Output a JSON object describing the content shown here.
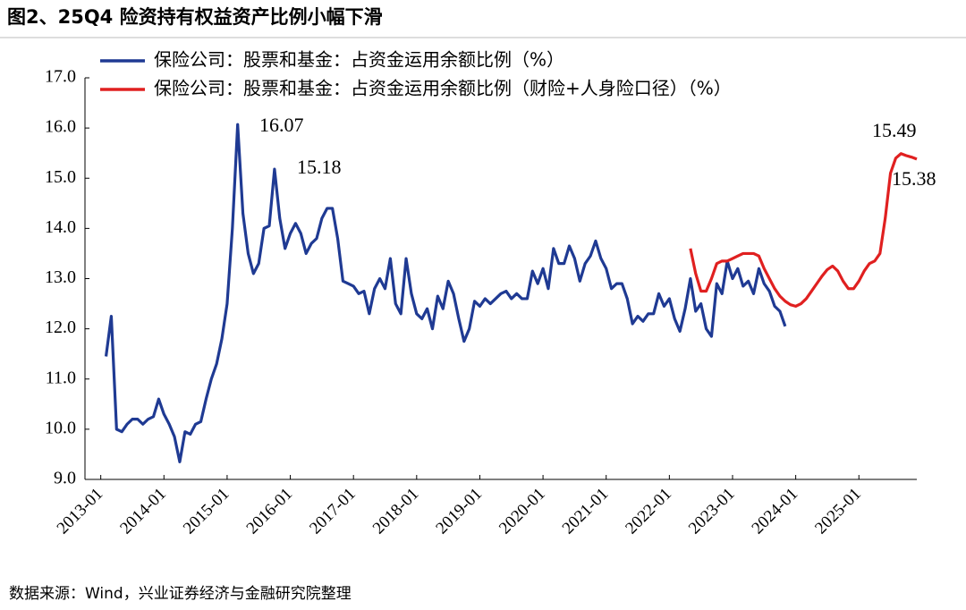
{
  "chart_data": {
    "type": "line",
    "title": "图2、25Q4 险资持有权益资产比例小幅下滑",
    "source": "数据来源：Wind，兴业证券经济与金融研究院整理",
    "x": [
      "2013-01",
      "2013-02",
      "2013-03",
      "2013-04",
      "2013-05",
      "2013-06",
      "2013-07",
      "2013-08",
      "2013-09",
      "2013-10",
      "2013-11",
      "2013-12",
      "2014-01",
      "2014-02",
      "2014-03",
      "2014-04",
      "2014-05",
      "2014-06",
      "2014-07",
      "2014-08",
      "2014-09",
      "2014-10",
      "2014-11",
      "2014-12",
      "2015-01",
      "2015-02",
      "2015-03",
      "2015-04",
      "2015-05",
      "2015-06",
      "2015-07",
      "2015-08",
      "2015-09",
      "2015-10",
      "2015-11",
      "2015-12",
      "2016-01",
      "2016-02",
      "2016-03",
      "2016-04",
      "2016-05",
      "2016-06",
      "2016-07",
      "2016-08",
      "2016-09",
      "2016-10",
      "2016-11",
      "2016-12",
      "2017-01",
      "2017-02",
      "2017-03",
      "2017-04",
      "2017-05",
      "2017-06",
      "2017-07",
      "2017-08",
      "2017-09",
      "2017-10",
      "2017-11",
      "2017-12",
      "2018-01",
      "2018-02",
      "2018-03",
      "2018-04",
      "2018-05",
      "2018-06",
      "2018-07",
      "2018-08",
      "2018-09",
      "2018-10",
      "2018-11",
      "2018-12",
      "2019-01",
      "2019-02",
      "2019-03",
      "2019-04",
      "2019-05",
      "2019-06",
      "2019-07",
      "2019-08",
      "2019-09",
      "2019-10",
      "2019-11",
      "2019-12",
      "2020-01",
      "2020-02",
      "2020-03",
      "2020-04",
      "2020-05",
      "2020-06",
      "2020-07",
      "2020-08",
      "2020-09",
      "2020-10",
      "2020-11",
      "2020-12",
      "2021-01",
      "2021-02",
      "2021-03",
      "2021-04",
      "2021-05",
      "2021-06",
      "2021-07",
      "2021-08",
      "2021-09",
      "2021-10",
      "2021-11",
      "2021-12",
      "2022-01",
      "2022-02",
      "2022-03",
      "2022-04",
      "2022-05",
      "2022-06",
      "2022-07",
      "2022-08",
      "2022-09",
      "2022-10",
      "2022-11",
      "2022-12",
      "2023-01",
      "2023-02",
      "2023-03",
      "2023-04",
      "2023-05",
      "2023-06",
      "2023-07",
      "2023-08",
      "2023-09",
      "2023-10",
      "2023-11",
      "2023-12",
      "2024-01",
      "2024-02",
      "2024-03",
      "2024-04",
      "2024-05",
      "2024-06",
      "2024-07",
      "2024-08",
      "2024-09",
      "2024-10",
      "2024-11",
      "2024-12",
      "2025-01",
      "2025-02",
      "2025-03",
      "2025-04",
      "2025-05",
      "2025-06",
      "2025-07",
      "2025-08",
      "2025-09",
      "2025-10",
      "2025-11",
      "2025-12"
    ],
    "series": [
      {
        "name": "保险公司：股票和基金：占资金运用余额比例（%）",
        "color": "#1f3a93",
        "values": [
          null,
          11.45,
          12.25,
          10.0,
          9.95,
          10.1,
          10.2,
          10.2,
          10.1,
          10.2,
          10.25,
          10.6,
          10.3,
          10.1,
          9.85,
          9.35,
          9.95,
          9.9,
          10.1,
          10.15,
          10.6,
          11.0,
          11.3,
          11.8,
          12.5,
          14.0,
          16.07,
          14.3,
          13.5,
          13.1,
          13.3,
          14.0,
          14.05,
          15.18,
          14.2,
          13.6,
          13.9,
          14.1,
          13.9,
          13.5,
          13.7,
          13.8,
          14.2,
          14.4,
          14.4,
          13.8,
          12.95,
          12.9,
          12.85,
          12.7,
          12.75,
          12.3,
          12.8,
          13.0,
          12.8,
          13.4,
          12.5,
          12.3,
          13.4,
          12.7,
          12.3,
          12.2,
          12.4,
          12.0,
          12.65,
          12.4,
          12.95,
          12.7,
          12.2,
          11.75,
          12.0,
          12.55,
          12.45,
          12.6,
          12.5,
          12.6,
          12.7,
          12.75,
          12.6,
          12.7,
          12.6,
          12.6,
          13.15,
          12.9,
          13.2,
          12.8,
          13.6,
          13.3,
          13.3,
          13.65,
          13.4,
          12.95,
          13.3,
          13.45,
          13.75,
          13.4,
          13.2,
          12.8,
          12.9,
          12.9,
          12.6,
          12.1,
          12.25,
          12.15,
          12.3,
          12.3,
          12.7,
          12.45,
          12.6,
          12.2,
          11.95,
          12.4,
          13.0,
          12.35,
          12.5,
          12.0,
          11.85,
          12.9,
          12.7,
          13.35,
          13.0,
          13.2,
          12.85,
          12.95,
          12.7,
          13.2,
          12.9,
          12.75,
          12.45,
          12.35,
          12.05,
          null,
          null,
          null,
          null,
          null,
          null,
          null,
          null,
          null,
          null,
          null,
          null,
          null,
          null,
          null,
          null,
          null,
          null,
          null,
          null,
          null,
          null,
          null,
          null,
          null
        ]
      },
      {
        "name": "保险公司：股票和基金：占资金运用余额比例（财险+人身险口径）（%）",
        "color": "#e02020",
        "values": [
          null,
          null,
          null,
          null,
          null,
          null,
          null,
          null,
          null,
          null,
          null,
          null,
          null,
          null,
          null,
          null,
          null,
          null,
          null,
          null,
          null,
          null,
          null,
          null,
          null,
          null,
          null,
          null,
          null,
          null,
          null,
          null,
          null,
          null,
          null,
          null,
          null,
          null,
          null,
          null,
          null,
          null,
          null,
          null,
          null,
          null,
          null,
          null,
          null,
          null,
          null,
          null,
          null,
          null,
          null,
          null,
          null,
          null,
          null,
          null,
          null,
          null,
          null,
          null,
          null,
          null,
          null,
          null,
          null,
          null,
          null,
          null,
          null,
          null,
          null,
          null,
          null,
          null,
          null,
          null,
          null,
          null,
          null,
          null,
          null,
          null,
          null,
          null,
          null,
          null,
          null,
          null,
          null,
          null,
          null,
          null,
          null,
          null,
          null,
          null,
          null,
          null,
          null,
          null,
          null,
          null,
          null,
          null,
          null,
          null,
          null,
          null,
          13.6,
          13.1,
          12.75,
          12.75,
          13.0,
          13.3,
          13.35,
          13.35,
          13.4,
          13.45,
          13.5,
          13.5,
          13.5,
          13.45,
          13.2,
          13.0,
          12.8,
          12.65,
          12.55,
          12.48,
          12.45,
          12.5,
          12.6,
          12.75,
          12.9,
          13.05,
          13.18,
          13.25,
          13.15,
          12.95,
          12.8,
          12.8,
          12.95,
          13.15,
          13.3,
          13.35,
          13.5,
          14.2,
          15.1,
          15.4,
          15.49,
          15.45,
          15.42,
          15.38
        ]
      }
    ],
    "annotations": [
      "16.07",
      "15.18",
      "15.49",
      "15.38"
    ],
    "xlim": [
      "2012-10",
      "2025-12"
    ],
    "xticks": [
      "2013-01",
      "2014-01",
      "2015-01",
      "2016-01",
      "2017-01",
      "2018-01",
      "2019-01",
      "2020-01",
      "2021-01",
      "2022-01",
      "2023-01",
      "2024-01",
      "2025-01"
    ],
    "ylim": [
      9,
      17
    ],
    "yticks": [
      {
        "value": 9,
        "label": "9.0"
      },
      {
        "value": 10,
        "label": "10.0"
      },
      {
        "value": 11,
        "label": "11.0"
      },
      {
        "value": 12,
        "label": "12.0"
      },
      {
        "value": 13,
        "label": "13.0"
      },
      {
        "value": 14,
        "label": "14.0"
      },
      {
        "value": 15,
        "label": "15.0"
      },
      {
        "value": 16,
        "label": "16.0"
      },
      {
        "value": 17,
        "label": "17.0"
      }
    ],
    "grid": false,
    "legend": "top"
  }
}
